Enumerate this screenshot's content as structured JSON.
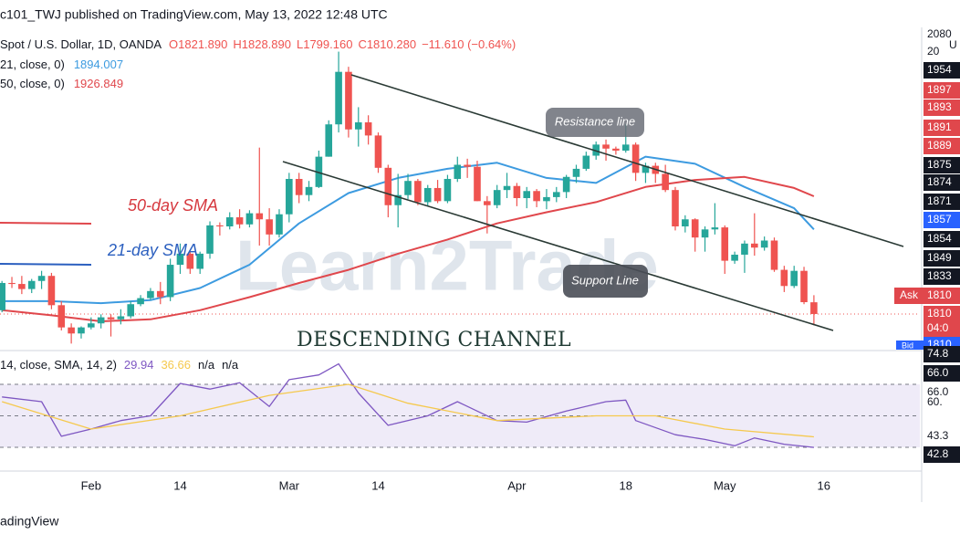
{
  "header": {
    "title": "c101_TWJ published on TradingView.com, May 13, 2022 12:48 UTC",
    "footer": "adingView"
  },
  "chart_data": [
    {
      "type": "candlestick",
      "symbol": "Spot / U.S. Dollar, 1D, OANDA",
      "ohlc_text": [
        "O1821.890",
        "H1828.890",
        "L1799.160",
        "C1810.280",
        "−11.610 (−0.64%)"
      ],
      "open": [
        1814,
        1841,
        1840,
        1835,
        1843,
        1848,
        1819,
        1797,
        1791,
        1797,
        1801,
        1807,
        1805,
        1808,
        1820,
        1826,
        1833,
        1827,
        1859,
        1870,
        1855,
        1870,
        1898,
        1897,
        1906,
        1899,
        1910,
        1904,
        1889,
        1909,
        1944,
        1928,
        1936,
        1966,
        1998,
        2050,
        1993,
        2000,
        1987,
        1955,
        1918,
        1928,
        1942,
        1921,
        1935,
        1922,
        1944,
        1958,
        1956,
        1922,
        1918,
        1933,
        1937,
        1925,
        1932,
        1922,
        1926,
        1931,
        1946,
        1954,
        1967,
        1978,
        1974,
        1972,
        1978,
        1950,
        1957,
        1949,
        1933,
        1897,
        1904,
        1886,
        1894,
        1896,
        1863,
        1869,
        1880,
        1876,
        1883,
        1854,
        1838,
        1853,
        1821.89
      ],
      "high": [
        1843,
        1847,
        1848,
        1845,
        1853,
        1851,
        1823,
        1801,
        1798,
        1807,
        1810,
        1810,
        1815,
        1823,
        1829,
        1836,
        1842,
        1865,
        1880,
        1872,
        1872,
        1902,
        1901,
        1911,
        1914,
        1913,
        1975,
        1915,
        1914,
        1950,
        1950,
        1942,
        1972,
        2002,
        2070,
        2055,
        2015,
        2007,
        1990,
        1958,
        1949,
        1949,
        1944,
        1938,
        1943,
        1948,
        1966,
        1964,
        1962,
        1927,
        1938,
        1950,
        1940,
        1936,
        1934,
        1934,
        1936,
        1948,
        1958,
        1971,
        1981,
        1983,
        1976,
        1998,
        1980,
        1960,
        1960,
        1958,
        1936,
        1908,
        1905,
        1897,
        1920,
        1898,
        1872,
        1883,
        1910,
        1887,
        1886,
        1858,
        1858,
        1857,
        1828.89
      ],
      "low": [
        1812,
        1836,
        1830,
        1831,
        1835,
        1815,
        1794,
        1781,
        1786,
        1795,
        1796,
        1788,
        1800,
        1806,
        1818,
        1824,
        1820,
        1823,
        1850,
        1850,
        1850,
        1865,
        1888,
        1894,
        1895,
        1896,
        1878,
        1878,
        1886,
        1901,
        1920,
        1922,
        1935,
        1966,
        1990,
        1985,
        1976,
        1978,
        1950,
        1906,
        1896,
        1924,
        1918,
        1917,
        1920,
        1920,
        1941,
        1945,
        1922,
        1890,
        1915,
        1925,
        1917,
        1915,
        1916,
        1914,
        1921,
        1925,
        1940,
        1952,
        1963,
        1962,
        1968,
        1970,
        1942,
        1940,
        1940,
        1931,
        1893,
        1891,
        1872,
        1872,
        1889,
        1850,
        1860,
        1851,
        1868,
        1873,
        1852,
        1832,
        1836,
        1820,
        1799.16
      ],
      "close": [
        1841,
        1840,
        1835,
        1843,
        1848,
        1819,
        1797,
        1791,
        1797,
        1801,
        1807,
        1805,
        1808,
        1820,
        1826,
        1833,
        1827,
        1859,
        1870,
        1855,
        1870,
        1898,
        1897,
        1906,
        1899,
        1910,
        1904,
        1889,
        1909,
        1944,
        1928,
        1936,
        1966,
        1998,
        2050,
        1993,
        2000,
        1987,
        1955,
        1918,
        1928,
        1942,
        1921,
        1935,
        1922,
        1944,
        1958,
        1956,
        1922,
        1918,
        1933,
        1937,
        1925,
        1932,
        1922,
        1926,
        1931,
        1946,
        1954,
        1967,
        1978,
        1974,
        1972,
        1978,
        1950,
        1957,
        1949,
        1933,
        1897,
        1904,
        1886,
        1894,
        1896,
        1863,
        1869,
        1880,
        1876,
        1883,
        1854,
        1838,
        1853,
        1822,
        1810.28
      ],
      "up_color": "#26a69a",
      "down_color": "#ef5350",
      "series": [
        {
          "name": "21, close, 0)",
          "label": "1894.007",
          "color": "#3d9be0",
          "x": [
            0,
            5,
            10,
            15,
            20,
            25,
            30,
            35,
            40,
            45,
            50,
            55,
            60,
            65,
            70,
            75,
            80,
            82
          ],
          "values": [
            1823,
            1823,
            1821,
            1824,
            1836,
            1859,
            1900,
            1930,
            1945,
            1954,
            1960,
            1945,
            1940,
            1966,
            1959,
            1936,
            1915,
            1894.007
          ]
        },
        {
          "name": "50, close, 0)",
          "label": "1926.849",
          "color": "#e0474c",
          "x": [
            0,
            5,
            10,
            15,
            20,
            25,
            30,
            35,
            40,
            45,
            50,
            55,
            60,
            65,
            70,
            75,
            80,
            82
          ],
          "values": [
            1814,
            1809,
            1803,
            1805,
            1814,
            1827,
            1841,
            1854,
            1870,
            1884,
            1900,
            1911,
            1921,
            1936,
            1943,
            1946,
            1935,
            1926.849
          ]
        }
      ],
      "xlim": [
        -0.2,
        92.7
      ],
      "ylim": [
        1775,
        2094
      ],
      "xticks": [
        {
          "value": 9,
          "label": "Feb"
        },
        {
          "value": 18,
          "label": "14"
        },
        {
          "value": 29,
          "label": "Mar"
        },
        {
          "value": 38,
          "label": "14"
        },
        {
          "value": 52,
          "label": "Apr"
        },
        {
          "value": 63,
          "label": "18"
        },
        {
          "value": 73,
          "label": "May"
        },
        {
          "value": 83,
          "label": "16"
        }
      ],
      "price_axis_labels": [
        "2080",
        "20",
        "1954",
        "1897",
        "1893",
        "1891",
        "1889",
        "1875",
        "1874",
        "1871",
        "1857",
        "1854",
        "1849",
        "1833",
        "1810",
        "1810",
        "04:0",
        "1810"
      ],
      "axis_unit": "U",
      "ask": "Ask",
      "bid": "Bid",
      "annotations": [
        "50-day SMA",
        "21-day SMA",
        "Resistance line",
        "Support Line",
        "DESCENDING CHANNEL"
      ],
      "watermark": "Learn2Trade"
    },
    {
      "type": "line",
      "name": "14, close, SMA, 14, 2)",
      "legend_values": [
        "29.94",
        "36.66",
        "n/a",
        "n/a"
      ],
      "series": [
        {
          "name": "RSI",
          "color": "#7e57c2",
          "x": [
            0,
            4,
            6,
            9,
            12,
            15,
            18,
            21,
            24,
            27,
            29,
            32,
            34,
            36,
            39,
            43,
            46,
            50,
            53,
            57,
            61,
            63,
            64,
            68,
            71,
            74,
            76,
            79,
            82
          ],
          "values": [
            62,
            59,
            37,
            41.6,
            47,
            50,
            70.6,
            67,
            71,
            56,
            73,
            76,
            83,
            64.5,
            44,
            50,
            59,
            47,
            46,
            53,
            59,
            60,
            47,
            38,
            35,
            31,
            36,
            32,
            29.94
          ]
        },
        {
          "name": "RSI-based MA",
          "color": "#f5c94e",
          "x": [
            0,
            9,
            18,
            27,
            35,
            41,
            50,
            60,
            66,
            73,
            82
          ],
          "values": [
            59,
            41.6,
            50,
            63,
            70,
            58,
            47,
            50,
            50,
            41.6,
            36.66
          ]
        }
      ],
      "levels": [
        70,
        50,
        30
      ],
      "ylim": [
        15.5,
        90.9
      ],
      "axis_labels": [
        "74.8",
        "66.0",
        "66.0",
        "60.",
        "43.3",
        "42.8"
      ]
    }
  ]
}
